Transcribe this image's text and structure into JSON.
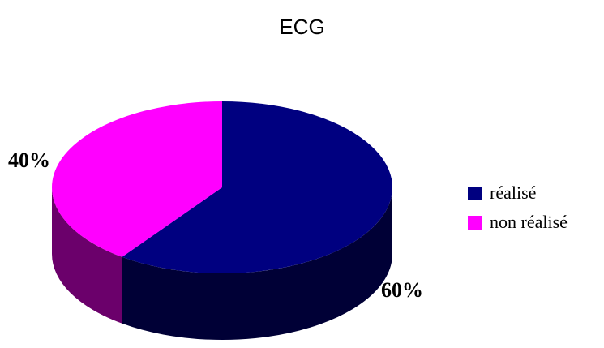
{
  "chart_data": {
    "type": "pie",
    "title": "ECG",
    "categories": [
      "réalisé",
      "non réalisé"
    ],
    "values": [
      60,
      40
    ],
    "data_labels": [
      "60%",
      "40%"
    ],
    "colors": [
      "#000080",
      "#FF00FF"
    ],
    "style": "3d",
    "legend": "right"
  }
}
